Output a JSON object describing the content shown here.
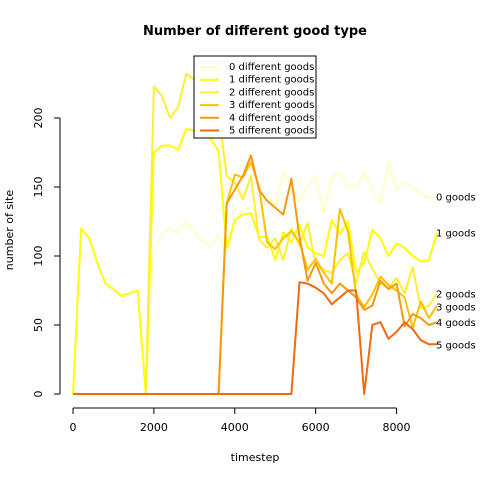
{
  "chart_data": {
    "type": "line",
    "title": "Number of different good type",
    "xlabel": "timestep",
    "ylabel": "number of site",
    "xlim": [
      0,
      9000
    ],
    "ylim": [
      0,
      200
    ],
    "xticks": [
      0,
      2000,
      4000,
      6000,
      8000
    ],
    "yticks": [
      0,
      50,
      100,
      150,
      200
    ],
    "grid": false,
    "legend": "top-center",
    "series": [
      {
        "name": "0 different goods",
        "end_label": "0 goods",
        "color": "#FFFFC8",
        "x": [
          0,
          200,
          400,
          600,
          800,
          1000,
          1200,
          1400,
          1600,
          1800,
          2000,
          2200,
          2400,
          2600,
          2800,
          3000,
          3200,
          3400,
          3600,
          3800,
          4000,
          4200,
          4400,
          4600,
          4800,
          5000,
          5200,
          5400,
          5600,
          5800,
          6000,
          6200,
          6400,
          6600,
          6800,
          7000,
          7200,
          7400,
          7600,
          7800,
          8000,
          8200,
          8400,
          8600,
          8800,
          9000
        ],
        "values": [
          0,
          0,
          0,
          0,
          0,
          0,
          0,
          0,
          0,
          0,
          105,
          115,
          120,
          117,
          125,
          118,
          110,
          107,
          115,
          102,
          125,
          133,
          135,
          130,
          145,
          135,
          160,
          152,
          140,
          150,
          158,
          132,
          157,
          160,
          150,
          150,
          160,
          148,
          138,
          168,
          148,
          153,
          150,
          145,
          142,
          143
        ]
      },
      {
        "name": "1 different goods",
        "end_label": "1 goods",
        "color": "#FFFF00",
        "x": [
          0,
          200,
          400,
          600,
          800,
          1000,
          1200,
          1400,
          1600,
          1800,
          2000,
          2200,
          2400,
          2600,
          2800,
          3000,
          3200,
          3400,
          3600,
          3800,
          4000,
          4200,
          4400,
          4600,
          4800,
          5000,
          5200,
          5400,
          5600,
          5800,
          6000,
          6200,
          6400,
          6600,
          6800,
          7000,
          7200,
          7400,
          7600,
          7800,
          8000,
          8200,
          8400,
          8600,
          8800,
          9000
        ],
        "values": [
          0,
          120,
          113,
          95,
          80,
          76,
          71,
          73,
          75,
          0,
          175,
          180,
          180,
          177,
          192,
          191,
          187,
          185,
          176,
          106,
          126,
          130,
          131,
          114,
          114,
          97,
          117,
          110,
          123,
          106,
          102,
          100,
          126,
          116,
          125,
          88,
          95,
          119,
          113,
          100,
          109,
          106,
          100,
          96,
          97,
          117
        ]
      },
      {
        "name": "2 different goods",
        "end_label": "2 goods",
        "color": "#FFEE33",
        "x": [
          0,
          1800,
          2000,
          2200,
          2400,
          2600,
          2800,
          3000,
          3200,
          3400,
          3600,
          3800,
          4000,
          4200,
          4400,
          4600,
          4800,
          5000,
          5200,
          5400,
          5600,
          5800,
          6000,
          6200,
          6400,
          6600,
          6800,
          7000,
          7200,
          7400,
          7600,
          7800,
          8000,
          8200,
          8400,
          8600,
          8800,
          9000
        ],
        "values": [
          0,
          0,
          223,
          216,
          200,
          208,
          232,
          228,
          205,
          196,
          204,
          158,
          153,
          141,
          158,
          112,
          106,
          113,
          97,
          120,
          108,
          124,
          93,
          90,
          88,
          97,
          102,
          80,
          103,
          91,
          80,
          77,
          84,
          73,
          92,
          62,
          64,
          73
        ]
      },
      {
        "name": "3 different goods",
        "end_label": "3 goods",
        "color": "#FFC000",
        "x": [
          0,
          3600,
          3800,
          4000,
          4200,
          4400,
          4600,
          4800,
          5000,
          5200,
          5400,
          5600,
          5800,
          6000,
          6200,
          6400,
          6600,
          6800,
          7000,
          7200,
          7400,
          7600,
          7800,
          8000,
          8200,
          8400,
          8600,
          8800,
          9000
        ],
        "values": [
          0,
          0,
          138,
          159,
          157,
          168,
          150,
          110,
          105,
          113,
          118,
          110,
          90,
          98,
          88,
          80,
          134,
          118,
          72,
          63,
          72,
          85,
          79,
          75,
          70,
          48,
          67,
          55,
          64
        ]
      },
      {
        "name": "4 different goods",
        "end_label": "4 goods",
        "color": "#F59A10",
        "x": [
          0,
          3600,
          3800,
          4000,
          4200,
          4400,
          4600,
          4800,
          5000,
          5200,
          5400,
          5600,
          5800,
          6000,
          6200,
          6400,
          6600,
          6800,
          7000,
          7200,
          7400,
          7600,
          7800,
          8000,
          8200,
          8400,
          8600,
          8800,
          9000
        ],
        "values": [
          0,
          0,
          138,
          148,
          158,
          173,
          148,
          140,
          135,
          130,
          156,
          114,
          82,
          95,
          80,
          73,
          80,
          75,
          70,
          61,
          64,
          82,
          76,
          80,
          49,
          58,
          55,
          50,
          52
        ]
      },
      {
        "name": "5 different goods",
        "end_label": "5 goods",
        "color": "#F06A10",
        "x": [
          0,
          5400,
          5600,
          5800,
          6000,
          6200,
          6400,
          6600,
          6800,
          7000,
          7200,
          7400,
          7600,
          7800,
          8000,
          8200,
          8400,
          8600,
          8800,
          9000
        ],
        "values": [
          0,
          0,
          81,
          80,
          77,
          73,
          65,
          70,
          75,
          75,
          0,
          50,
          52,
          40,
          45,
          52,
          47,
          39,
          36,
          36
        ]
      }
    ]
  }
}
